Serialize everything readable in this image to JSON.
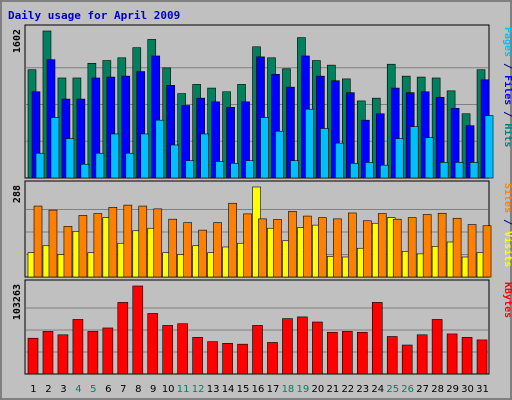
{
  "chart_data": {
    "type": "bar",
    "title": "Daily usage for April 2009",
    "x": [
      "1",
      "2",
      "3",
      "4",
      "5",
      "6",
      "7",
      "8",
      "9",
      "10",
      "11",
      "12",
      "13",
      "14",
      "15",
      "16",
      "17",
      "18",
      "19",
      "20",
      "21",
      "22",
      "23",
      "24",
      "25",
      "26",
      "27",
      "28",
      "29",
      "30",
      "31"
    ],
    "weekend_days": [
      "4",
      "5",
      "11",
      "12",
      "18",
      "19",
      "25",
      "26"
    ],
    "panels": [
      {
        "name": "hits-files-pages",
        "max_label": "1602",
        "max": 1602,
        "right_labels": [
          {
            "text": "Pages",
            "color": "#00c0ff"
          },
          {
            "text": " / ",
            "color": "#00008b"
          },
          {
            "text": "Files",
            "color": "#0000ff"
          },
          {
            "text": " / ",
            "color": "#00008b"
          },
          {
            "text": "Hits",
            "color": "#008080"
          }
        ],
        "series": [
          {
            "name": "Hits",
            "color": "#00805c",
            "values": [
              1180,
              1602,
              1090,
              1090,
              1250,
              1280,
              1310,
              1420,
              1510,
              1200,
              920,
              1020,
              980,
              940,
              1020,
              1430,
              1310,
              1190,
              1530,
              1280,
              1230,
              1080,
              840,
              870,
              1240,
              1110,
              1100,
              1090,
              950,
              700,
              1180
            ]
          },
          {
            "name": "Files",
            "color": "#0000ff",
            "values": [
              940,
              1290,
              860,
              860,
              1090,
              1100,
              1110,
              1160,
              1330,
              1010,
              790,
              870,
              830,
              770,
              830,
              1320,
              1130,
              990,
              1330,
              1110,
              1060,
              930,
              630,
              700,
              980,
              930,
              940,
              880,
              760,
              570,
              1070
            ]
          },
          {
            "name": "Pages",
            "color": "#00bfff",
            "values": [
              270,
              660,
              430,
              150,
              270,
              480,
              270,
              480,
              630,
              360,
              190,
              480,
              180,
              160,
              190,
              660,
              510,
              190,
              750,
              540,
              380,
              160,
              170,
              140,
              430,
              560,
              440,
              170,
              170,
              170,
              680
            ]
          }
        ]
      },
      {
        "name": "sites-visits",
        "max_label": "288",
        "max": 288,
        "right_labels": [
          {
            "text": "Sites",
            "color": "#ff8000"
          },
          {
            "text": " / ",
            "color": "#00008b"
          },
          {
            "text": "Visits",
            "color": "#ffff00"
          }
        ],
        "series": [
          {
            "name": "Visits",
            "color": "#ffff00",
            "values": [
              78,
              100,
              72,
              146,
              78,
              190,
              108,
              148,
              156,
              78,
              72,
              100,
              78,
              96,
              108,
              288,
              156,
              116,
              158,
              166,
              66,
              64,
              92,
              172,
              190,
              82,
              74,
              98,
              112,
              64,
              78
            ]
          },
          {
            "name": "Sites",
            "color": "#ff8000",
            "values": [
              227,
              214,
              162,
              197,
              203,
              223,
              230,
              227,
              218,
              185,
              174,
              150,
              174,
              236,
              202,
              186,
              184,
              210,
              195,
              190,
              186,
              205,
              180,
              203,
              185,
              190,
              200,
              204,
              188,
              168,
              164
            ]
          }
        ]
      },
      {
        "name": "kbytes",
        "max_label": "103263",
        "max": 103263,
        "right_labels": [
          {
            "text": "KBytes",
            "color": "#ff0000"
          }
        ],
        "series": [
          {
            "name": "KBytes",
            "color": "#ff0000",
            "values": [
              42000,
              50000,
              46000,
              64000,
              50000,
              54000,
              84000,
              103263,
              71000,
              57000,
              59000,
              43000,
              38000,
              36000,
              35000,
              57000,
              37000,
              65000,
              67000,
              61000,
              49000,
              50000,
              49000,
              84000,
              44000,
              34000,
              46000,
              64000,
              47000,
              43000,
              40000
            ]
          }
        ]
      }
    ]
  }
}
